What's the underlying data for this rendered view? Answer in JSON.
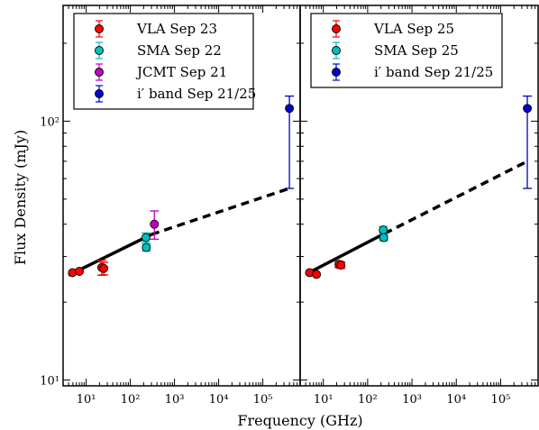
{
  "chart_data": {
    "type": "scatter",
    "xlabel": "Frequency (GHz)",
    "ylabel": "Flux Density (mJy)",
    "x_scale": "log",
    "y_scale": "log",
    "xlim": [
      3,
      700000
    ],
    "ylim": [
      9.5,
      280
    ],
    "y_ticks": [
      {
        "value": 10,
        "label": "10¹"
      },
      {
        "value": 100,
        "label": "10²"
      }
    ],
    "x_ticks": [
      {
        "value": 10,
        "label": "10¹"
      },
      {
        "value": 100,
        "label": "10²"
      },
      {
        "value": 1000,
        "label": "10³"
      },
      {
        "value": 10000,
        "label": "10⁴"
      },
      {
        "value": 100000,
        "label": "10⁵"
      }
    ],
    "grid": false,
    "legend_position": "top-left",
    "panels": [
      {
        "series": [
          {
            "name": "VLA Sep 23",
            "color": "#ff0000",
            "errcolor": "#ff0000",
            "points": [
              {
                "x": 4.9,
                "y": 26.0,
                "err": 0
              },
              {
                "x": 7.0,
                "y": 26.3,
                "err": 0
              },
              {
                "x": 22.5,
                "y": 27.2,
                "err": 1.8
              },
              {
                "x": 25.0,
                "y": 27.0,
                "err": 1.5
              }
            ]
          },
          {
            "name": "SMA Sep 22",
            "color": "#00bfbf",
            "errcolor": "#00bfbf",
            "points": [
              {
                "x": 225,
                "y": 35.5,
                "err": 1.5
              },
              {
                "x": 230,
                "y": 32.5,
                "err": 1.0
              }
            ]
          },
          {
            "name": "JCMT Sep 21",
            "color": "#bf00bf",
            "errcolor": "#bf00bf",
            "points": [
              {
                "x": 350,
                "y": 40.0,
                "err": 5.0
              }
            ]
          },
          {
            "name": "i′ band Sep 21/25",
            "color": "#0000cc",
            "errcolor": "#0000cc",
            "points": [
              {
                "x": 400000,
                "y": 112,
                "err_low": 55,
                "err_high": 125
              }
            ]
          }
        ],
        "fit": {
          "x_start": 4,
          "y_start": 25.4,
          "x_break": 300,
          "y_break": 36.5,
          "x_end": 400000,
          "y_end": 55
        }
      },
      {
        "series": [
          {
            "name": "VLA Sep 25",
            "color": "#ff0000",
            "errcolor": "#ff0000",
            "points": [
              {
                "x": 4.9,
                "y": 26.0,
                "err": 0
              },
              {
                "x": 7.0,
                "y": 25.6,
                "err": 0
              },
              {
                "x": 22.5,
                "y": 28.0,
                "err": 0.8
              },
              {
                "x": 25.0,
                "y": 27.8,
                "err": 0.8
              }
            ]
          },
          {
            "name": "SMA Sep 25",
            "color": "#00bfbf",
            "errcolor": "#00bfbf",
            "points": [
              {
                "x": 225,
                "y": 38.0,
                "err": 1.2
              },
              {
                "x": 230,
                "y": 35.5,
                "err": 1.0
              }
            ]
          },
          {
            "name": "i′ band Sep 21/25",
            "color": "#0000cc",
            "errcolor": "#0000cc",
            "points": [
              {
                "x": 400000,
                "y": 112,
                "err_low": 55,
                "err_high": 125
              }
            ]
          }
        ],
        "fit": {
          "x_start": 4,
          "y_start": 25.6,
          "x_break": 240,
          "y_break": 36.8,
          "x_end": 400000,
          "y_end": 70
        }
      }
    ]
  }
}
